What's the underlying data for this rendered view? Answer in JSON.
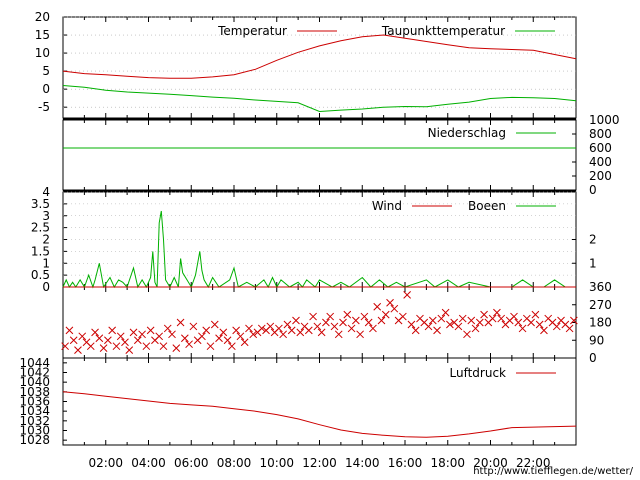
{
  "colors": {
    "red": "#cc0000",
    "green": "#00b000",
    "black": "#000000",
    "grid": "#aaaaaa"
  },
  "footer": {
    "credit": "http://www.tiefflegen.de/wetter/"
  },
  "chart_data": [
    {
      "type": "line",
      "panel": "temperature",
      "ylim": [
        -8,
        20
      ],
      "yticks": [
        "20",
        "15",
        "10",
        "5",
        "0",
        "-5"
      ],
      "xlim": [
        0,
        24
      ],
      "legend": "top-right",
      "series": [
        {
          "name": "Temperatur",
          "color": "#cc0000",
          "x": [
            0,
            1,
            2,
            3,
            4,
            5,
            6,
            7,
            8,
            9,
            10,
            11,
            12,
            13,
            14,
            15,
            16,
            17,
            18,
            19,
            20,
            21,
            22,
            23,
            24
          ],
          "values": [
            5,
            4.3,
            4,
            3.6,
            3.2,
            3,
            3,
            3.4,
            4,
            5.5,
            8,
            10.2,
            12,
            13.4,
            14.5,
            15,
            14.1,
            13.2,
            12.3,
            11.5,
            11.2,
            11,
            10.8,
            9.6,
            8.4
          ]
        },
        {
          "name": "Taupunkttemperatur",
          "color": "#00b000",
          "x": [
            0,
            1,
            2,
            3,
            4,
            5,
            6,
            7,
            8,
            9,
            10,
            11,
            12,
            13,
            14,
            15,
            16,
            17,
            18,
            19,
            20,
            21,
            22,
            23,
            24
          ],
          "values": [
            1,
            0.5,
            -0.3,
            -0.8,
            -1.1,
            -1.4,
            -1.8,
            -2.2,
            -2.5,
            -3,
            -3.4,
            -3.8,
            -6.2,
            -5.8,
            -5.5,
            -5,
            -4.8,
            -4.9,
            -4.2,
            -3.6,
            -2.6,
            -2.3,
            -2.4,
            -2.6,
            -3.2
          ]
        }
      ]
    },
    {
      "type": "line",
      "panel": "precipitation",
      "ylim": [
        0,
        1000
      ],
      "yticks": [
        "1000",
        "800",
        "600",
        "400",
        "200",
        "0"
      ],
      "legend": "top-right",
      "series": [
        {
          "name": "Niederschlag",
          "color": "#00b000",
          "x": [
            0,
            24
          ],
          "values": [
            600,
            600
          ]
        }
      ]
    },
    {
      "type": "line",
      "panel": "wind",
      "ylim": [
        0,
        4
      ],
      "yticks": [
        "4",
        "3.5",
        "3",
        "2.5",
        "2",
        "1.5",
        "1",
        "0.5",
        "0"
      ],
      "right_ticks": [
        "2",
        "1"
      ],
      "legend": "top-right",
      "series": [
        {
          "name": "Wind",
          "color": "#cc0000",
          "x": [
            0,
            24
          ],
          "values": [
            0,
            0
          ]
        },
        {
          "name": "Boeen",
          "color": "#00b000",
          "x": [
            0,
            0.15,
            0.3,
            0.45,
            0.6,
            0.8,
            1,
            1.2,
            1.4,
            1.5,
            1.7,
            1.9,
            2.2,
            2.4,
            2.6,
            2.8,
            3,
            3.3,
            3.5,
            3.7,
            3.9,
            4.1,
            4.2,
            4.3,
            4.4,
            4.5,
            4.6,
            4.7,
            4.8,
            5,
            5.2,
            5.4,
            5.5,
            5.6,
            5.8,
            6,
            6.2,
            6.4,
            6.5,
            6.6,
            6.8,
            7,
            7.3,
            7.8,
            8,
            8.2,
            8.6,
            9,
            9.4,
            9.6,
            9.8,
            10,
            10.2,
            10.6,
            11,
            11.2,
            11.4,
            11.8,
            12,
            12.6,
            13,
            13.4,
            14,
            14.4,
            14.8,
            15.2,
            15.6,
            16,
            17,
            17.4,
            18,
            18.5,
            19,
            20,
            21,
            21.5,
            22,
            22.5,
            23,
            23.5,
            24
          ],
          "values": [
            0,
            0.3,
            0,
            0.2,
            0,
            0.3,
            0,
            0.5,
            0,
            0.3,
            1,
            0,
            0.4,
            0,
            0.3,
            0.2,
            0,
            0.8,
            0,
            0.3,
            0,
            0.4,
            1.5,
            0.2,
            0,
            2.7,
            3.2,
            2,
            0.3,
            0,
            0.4,
            0,
            1.2,
            0.6,
            0.3,
            0,
            0.5,
            1.5,
            0.7,
            0.3,
            0,
            0.4,
            0,
            0.3,
            0.8,
            0,
            0.2,
            0,
            0.3,
            0,
            0.4,
            0,
            0.3,
            0,
            0.2,
            0,
            0.3,
            0,
            0.3,
            0,
            0.2,
            0,
            0.4,
            0,
            0.3,
            0,
            0.2,
            0,
            0.3,
            0,
            0.3,
            0,
            0.2,
            0,
            0,
            0.3,
            0,
            0,
            0.3,
            0,
            0
          ]
        }
      ]
    },
    {
      "type": "scatter",
      "panel": "wind_direction",
      "ylim": [
        0,
        360
      ],
      "right_ticks": [
        "360",
        "270",
        "180",
        "90",
        "0"
      ],
      "series": [
        {
          "color": "#cc0000",
          "marker": "x",
          "x": [
            0.1,
            0.3,
            0.5,
            0.7,
            0.9,
            1.1,
            1.3,
            1.5,
            1.7,
            1.9,
            2.1,
            2.3,
            2.5,
            2.7,
            2.9,
            3.1,
            3.3,
            3.5,
            3.7,
            3.9,
            4.1,
            4.3,
            4.5,
            4.7,
            4.9,
            5.1,
            5.3,
            5.5,
            5.7,
            5.9,
            6.1,
            6.3,
            6.5,
            6.7,
            6.9,
            7.1,
            7.3,
            7.5,
            7.7,
            7.9,
            8.1,
            8.3,
            8.5,
            8.7,
            8.9,
            9.1,
            9.3,
            9.5,
            9.7,
            9.9,
            10.1,
            10.3,
            10.5,
            10.7,
            10.9,
            11.1,
            11.3,
            11.5,
            11.7,
            11.9,
            12.1,
            12.3,
            12.5,
            12.7,
            12.9,
            13.1,
            13.3,
            13.5,
            13.7,
            13.9,
            14.1,
            14.3,
            14.5,
            14.7,
            14.9,
            15.1,
            15.3,
            15.5,
            15.7,
            15.9,
            16.1,
            16.3,
            16.5,
            16.7,
            16.9,
            17.1,
            17.3,
            17.5,
            17.7,
            17.9,
            18.1,
            18.3,
            18.5,
            18.7,
            18.9,
            19.1,
            19.3,
            19.5,
            19.7,
            19.9,
            20.1,
            20.3,
            20.5,
            20.7,
            20.9,
            21.1,
            21.3,
            21.5,
            21.7,
            21.9,
            22.1,
            22.3,
            22.5,
            22.7,
            22.9,
            23.1,
            23.3,
            23.5,
            23.7,
            23.9
          ],
          "values": [
            60,
            140,
            90,
            40,
            110,
            80,
            60,
            130,
            100,
            50,
            90,
            140,
            60,
            110,
            80,
            40,
            130,
            90,
            120,
            60,
            140,
            90,
            110,
            60,
            150,
            120,
            50,
            180,
            100,
            70,
            160,
            90,
            110,
            140,
            60,
            170,
            100,
            130,
            90,
            60,
            140,
            110,
            80,
            150,
            120,
            130,
            150,
            140,
            160,
            130,
            150,
            120,
            170,
            140,
            190,
            130,
            160,
            140,
            210,
            160,
            130,
            180,
            210,
            160,
            120,
            180,
            220,
            150,
            190,
            120,
            210,
            180,
            150,
            260,
            190,
            220,
            280,
            250,
            190,
            210,
            320,
            170,
            140,
            200,
            180,
            160,
            190,
            140,
            200,
            230,
            170,
            180,
            160,
            200,
            120,
            190,
            150,
            180,
            220,
            180,
            200,
            230,
            200,
            170,
            190,
            210,
            180,
            150,
            200,
            180,
            220,
            170,
            140,
            200,
            180,
            160,
            190,
            170,
            150,
            190
          ]
        }
      ]
    },
    {
      "type": "line",
      "panel": "pressure",
      "ylim": [
        1027,
        1045
      ],
      "yticks": [
        "1044",
        "1042",
        "1040",
        "1038",
        "1036",
        "1034",
        "1032",
        "1030",
        "1028"
      ],
      "xtick_labels": [
        "02:00",
        "04:00",
        "06:00",
        "08:00",
        "10:00",
        "12:00",
        "14:00",
        "16:00",
        "18:00",
        "20:00",
        "22:00"
      ],
      "xtick_values": [
        2,
        4,
        6,
        8,
        10,
        12,
        14,
        16,
        18,
        20,
        22
      ],
      "legend": "top-right",
      "series": [
        {
          "name": "Luftdruck",
          "color": "#cc0000",
          "x": [
            0,
            1,
            2,
            3,
            4,
            5,
            6,
            7,
            8,
            9,
            10,
            11,
            12,
            13,
            14,
            15,
            16,
            17,
            18,
            19,
            20,
            21,
            22,
            23,
            24
          ],
          "values": [
            1038,
            1037.6,
            1037.1,
            1036.6,
            1036.1,
            1035.6,
            1035.3,
            1035,
            1034.5,
            1034,
            1033.3,
            1032.4,
            1031.2,
            1030.1,
            1029.4,
            1029,
            1028.7,
            1028.6,
            1028.8,
            1029.3,
            1029.9,
            1030.6,
            1030.7,
            1030.8,
            1030.9
          ]
        }
      ]
    }
  ]
}
